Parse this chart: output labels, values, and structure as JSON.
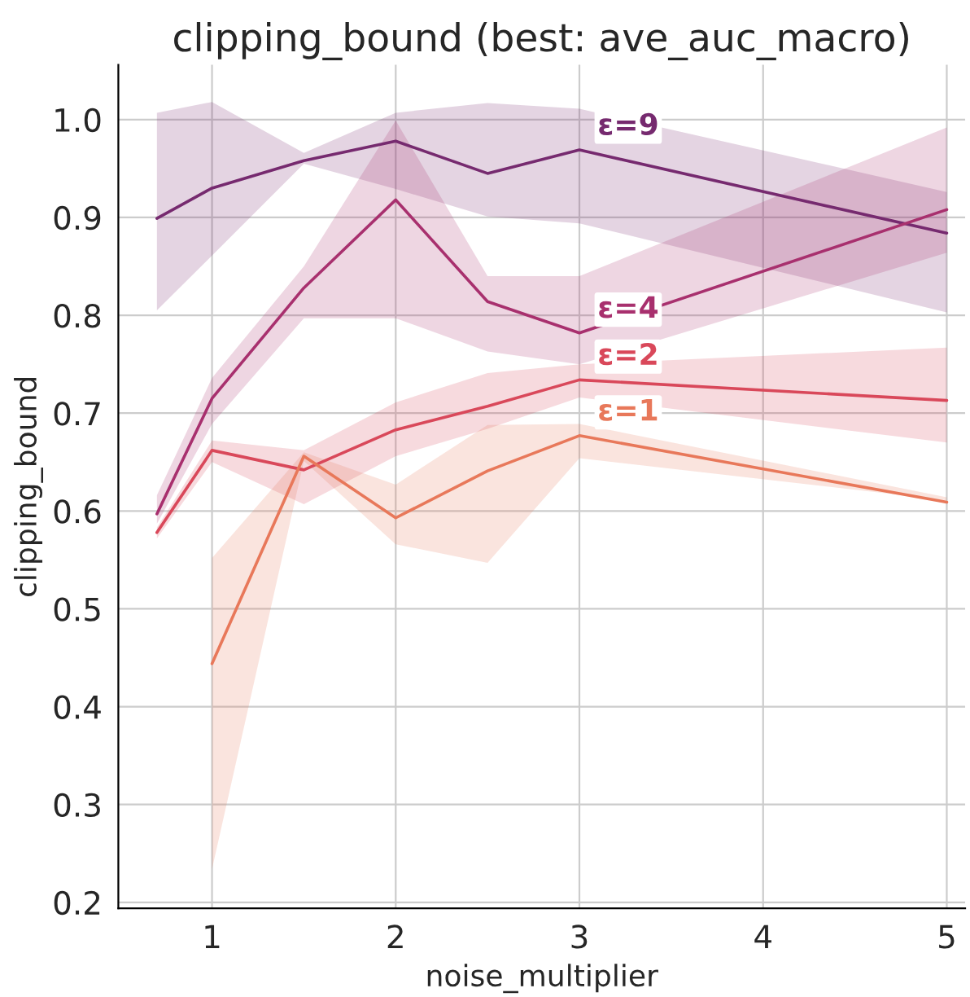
{
  "chart_data": {
    "type": "line",
    "title": "clipping_bound (best: ave_auc_macro)",
    "xlabel": "noise_multiplier",
    "ylabel": "clipping_bound",
    "x": [
      0.7,
      1,
      1.5,
      2,
      2.5,
      3,
      5
    ],
    "series": [
      {
        "name": "ε=9",
        "color": "#762a6f",
        "values": [
          0.899,
          0.93,
          0.958,
          0.978,
          0.945,
          0.969,
          0.884
        ],
        "lower": [
          0.805,
          0.861,
          0.955,
          0.929,
          0.901,
          0.894,
          0.803
        ],
        "upper": [
          1.007,
          1.018,
          0.966,
          1.007,
          1.017,
          1.011,
          0.926
        ]
      },
      {
        "name": "ε=4",
        "color": "#a8306e",
        "values": [
          0.597,
          0.715,
          0.828,
          0.918,
          0.814,
          0.782,
          0.908
        ],
        "lower": [
          0.587,
          0.689,
          0.797,
          0.797,
          0.763,
          0.75,
          0.864
        ],
        "upper": [
          0.616,
          0.736,
          0.85,
          0.999,
          0.84,
          0.84,
          0.992
        ]
      },
      {
        "name": "ε=2",
        "color": "#d9485a",
        "values": [
          0.578,
          0.662,
          0.642,
          0.683,
          0.707,
          0.734,
          0.713
        ],
        "lower": [
          0.572,
          0.65,
          0.607,
          0.656,
          0.684,
          0.716,
          0.67
        ],
        "upper": [
          0.583,
          0.672,
          0.662,
          0.711,
          0.741,
          0.75,
          0.767
        ]
      },
      {
        "name": "ε=1",
        "color": "#e8785a",
        "values": [
          null,
          0.444,
          0.656,
          0.593,
          0.641,
          0.677,
          0.609
        ],
        "lower": [
          null,
          0.234,
          0.651,
          0.566,
          0.547,
          0.654,
          0.611
        ],
        "upper": [
          null,
          0.552,
          0.66,
          0.627,
          0.688,
          0.689,
          0.614
        ]
      }
    ],
    "xlim": [
      0.49,
      5.1
    ],
    "ylim": [
      0.194,
      1.056
    ],
    "xticks": [
      1,
      2,
      3,
      4,
      5
    ],
    "yticks": [
      0.2,
      0.3,
      0.4,
      0.5,
      0.6,
      0.7,
      0.8,
      0.9,
      {
        "value": 1.0,
        "label": "1.0"
      }
    ],
    "grid": true,
    "legend": false,
    "marker": "none",
    "line_style": "solid"
  }
}
